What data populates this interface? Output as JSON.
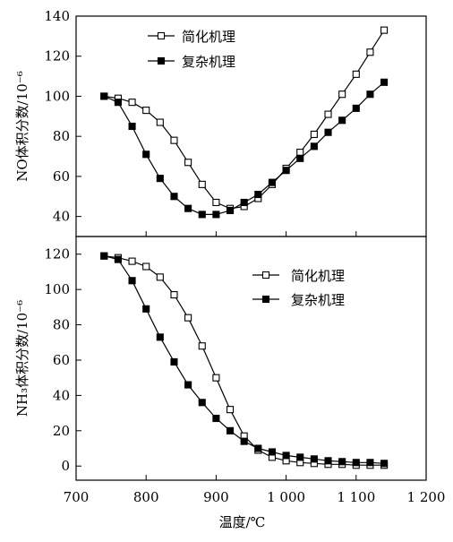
{
  "chart_data": [
    {
      "type": "line",
      "ylabel": "NO体积分数/10⁻⁶",
      "xlim": [
        700,
        1200
      ],
      "ylim": [
        30,
        140
      ],
      "yticks": [
        40,
        60,
        80,
        100,
        120,
        140
      ],
      "legend_position": "top-center",
      "x": [
        740,
        760,
        780,
        800,
        820,
        840,
        860,
        880,
        900,
        920,
        940,
        960,
        980,
        1000,
        1020,
        1040,
        1060,
        1080,
        1100,
        1120,
        1140
      ],
      "series": [
        {
          "name": "简化机理",
          "marker": "open-square",
          "values": [
            100,
            99,
            97,
            93,
            87,
            78,
            67,
            56,
            47,
            44,
            45,
            49,
            56,
            64,
            72,
            81,
            91,
            101,
            111,
            122,
            133
          ]
        },
        {
          "name": "复杂机理",
          "marker": "filled-square",
          "values": [
            100,
            97,
            85,
            71,
            59,
            50,
            44,
            41,
            41,
            43,
            47,
            51,
            57,
            63,
            69,
            75,
            82,
            88,
            94,
            101,
            107
          ]
        }
      ]
    },
    {
      "type": "line",
      "ylabel": "NH₃体积分数/10⁻⁶",
      "xlabel": "温度/℃",
      "xlim": [
        700,
        1200
      ],
      "ylim": [
        -8,
        130
      ],
      "xticks": [
        700,
        800,
        900,
        1000,
        1100,
        1200
      ],
      "xtick_labels": [
        "700",
        "800",
        "900",
        "1 000",
        "1 100",
        "1 200"
      ],
      "yticks": [
        0,
        20,
        40,
        60,
        80,
        100,
        120
      ],
      "legend_position": "top-right",
      "x": [
        740,
        760,
        780,
        800,
        820,
        840,
        860,
        880,
        900,
        920,
        940,
        960,
        980,
        1000,
        1020,
        1040,
        1060,
        1080,
        1100,
        1120,
        1140
      ],
      "series": [
        {
          "name": "简化机理",
          "marker": "open-square",
          "values": [
            119,
            118,
            116,
            113,
            107,
            97,
            84,
            68,
            50,
            32,
            17,
            9,
            5,
            3,
            2,
            1.5,
            1,
            1,
            0.5,
            0.5,
            0.5
          ]
        },
        {
          "name": "复杂机理",
          "marker": "filled-square",
          "values": [
            119,
            117,
            105,
            89,
            73,
            59,
            46,
            36,
            27,
            20,
            14,
            10,
            8,
            6,
            5,
            4,
            3,
            2.5,
            2,
            2,
            1.5
          ]
        }
      ]
    }
  ]
}
